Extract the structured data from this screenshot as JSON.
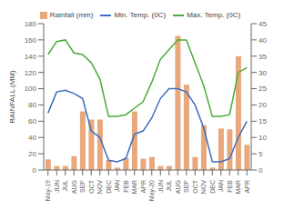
{
  "chart_data": {
    "type": "bar",
    "categories": [
      "May-19",
      "JUN",
      "JUL",
      "AUG",
      "SEP",
      "OCT",
      "NOV",
      "DEC",
      "JAN",
      "FEB",
      "MAR",
      "APR",
      "May-20",
      "JUN",
      "JUL",
      "AUG",
      "SEP",
      "OCT",
      "NOV",
      "DEC",
      "JAN",
      "FEB",
      "MAR",
      "APR"
    ],
    "ylabel": "RAINFALL (MM)",
    "ylim": [
      0,
      180
    ],
    "yticks": [
      0,
      20,
      40,
      60,
      80,
      100,
      120,
      140,
      160,
      180
    ],
    "y2lim": [
      0,
      45
    ],
    "y2ticks": [
      0,
      5,
      10,
      15,
      20,
      25,
      30,
      35,
      40,
      45
    ],
    "grid": false,
    "legend": "top",
    "series": [
      {
        "name": "Rainfall (mm)",
        "type": "bar",
        "color": "#e8a87c",
        "values": [
          13,
          5,
          5,
          17,
          72,
          62,
          62,
          12,
          3,
          15,
          72,
          14,
          16,
          5,
          5,
          165,
          105,
          16,
          55,
          3,
          51,
          50,
          140,
          31
        ]
      },
      {
        "name": "Min. Temp. (0C)",
        "type": "line",
        "color": "#3a6dbf",
        "axis": "y2",
        "values": [
          17.5,
          24,
          24.5,
          23.5,
          22,
          12,
          10,
          3,
          2.5,
          3.5,
          11,
          12,
          16,
          22,
          25,
          25,
          24,
          20,
          13,
          2.5,
          2.5,
          3.5,
          10,
          15
        ]
      },
      {
        "name": "Max. Temp. (0C)",
        "type": "line",
        "color": "#4aaa3a",
        "axis": "y2",
        "values": [
          35.5,
          39.5,
          40,
          36,
          35.5,
          33,
          28,
          16.5,
          16.5,
          17,
          19,
          21,
          27,
          34,
          37,
          40,
          40,
          33,
          26,
          16.5,
          16.5,
          17,
          30,
          31.5
        ]
      }
    ]
  }
}
